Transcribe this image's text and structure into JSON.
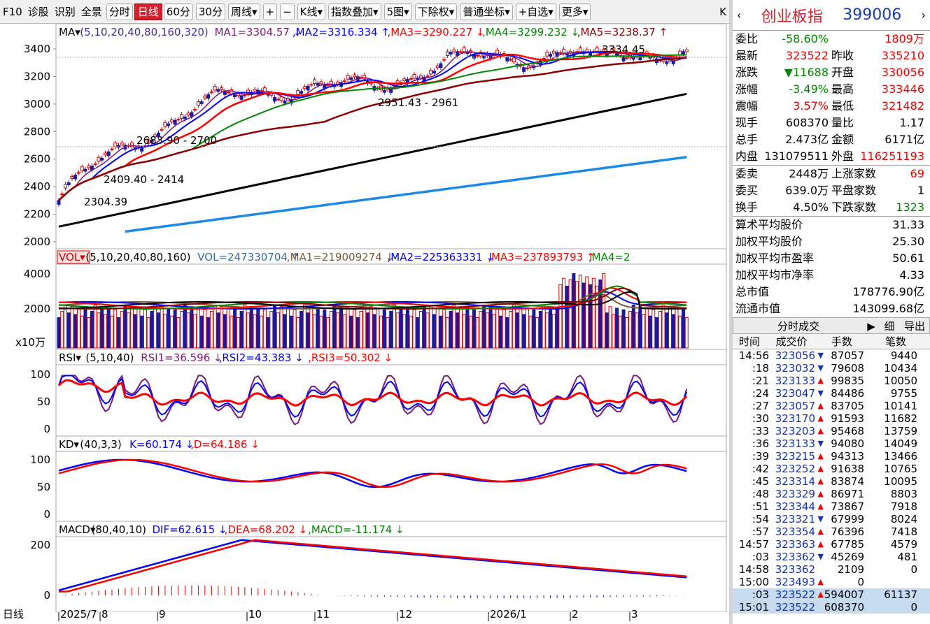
{
  "toolbar": {
    "items": [
      "F10",
      "诊股",
      "识别",
      "全景",
      "分时",
      "日线",
      "60分",
      "30分",
      "周线▾",
      "+",
      "−",
      "K线▾",
      "指数叠加▾",
      "5图▾",
      "下除权▾",
      "普通坐标▾",
      "+自选▾",
      "更多▾"
    ],
    "close": "K"
  },
  "ma_header": {
    "label": "MA▾",
    "params": "(5,10,20,40,80,160,320)",
    "ma1": "MA1=3304.57",
    "ma2": "MA2=3316.334",
    "ma3": "MA3=3290.227",
    "ma4": "MA4=3299.232",
    "ma5": "MA5=3238.37"
  },
  "price_axis": [
    "3400",
    "3200",
    "3000",
    "2800",
    "2600",
    "2400",
    "2200",
    "2000"
  ],
  "annotations": {
    "a1": "3334.45",
    "a2": "2951.43 - 2961",
    "a3": "2683.90 - 2700",
    "a4": "2409.40 - 2414",
    "a5": "2304.39"
  },
  "vol_header": {
    "label": "VOL▾",
    "params": "(5,10,20,40,80,160)",
    "vol": "VOL=247330704",
    "ma1": "MA1=219009274",
    "ma2": "MA2=225363331",
    "ma3": "MA3=237893793",
    "ma4": "MA4=2"
  },
  "vol_axis": [
    "4000",
    "2000"
  ],
  "vol_unit": "x10万",
  "rsi_header": {
    "label": "RSI▾",
    "params": "(5,10,40)",
    "r1": "RSI1=36.596",
    "r2": "RSI2=43.383",
    "r3": "RSI3=50.302"
  },
  "rsi_axis": [
    "100",
    "50",
    "0"
  ],
  "kd_header": {
    "label": "KD▾",
    "params": "(40,3,3)",
    "k": "K=60.174",
    "d": "D=64.186"
  },
  "kd_axis": [
    "100",
    "50",
    "0"
  ],
  "macd_header": {
    "label": "MACD▾",
    "params": "(80,40,10)",
    "dif": "DIF=62.615",
    "dea": "DEA=68.202",
    "macd": "MACD=-11.174"
  },
  "macd_axis": [
    "200",
    "0"
  ],
  "date_axis": {
    "corner": "日线",
    "labels": [
      "2025/7",
      "8",
      "9",
      "10",
      "11",
      "12",
      "2026/1",
      "2",
      "3"
    ]
  },
  "quote": {
    "name": "创业板指",
    "code": "399006",
    "rows": [
      [
        "委比",
        "-58.60%",
        "",
        "1809万"
      ],
      [
        "最新",
        "323522",
        "昨收",
        "335210"
      ],
      [
        "涨跌",
        "▼11688",
        "开盘",
        "330056"
      ],
      [
        "涨幅",
        "-3.49%",
        "最高",
        "333446"
      ],
      [
        "震幅",
        "3.57%",
        "最低",
        "321482"
      ],
      [
        "现手",
        "608370",
        "量比",
        "1.17"
      ],
      [
        "总手",
        "2.473亿",
        "金额",
        "6171亿"
      ],
      [
        "内盘",
        "131079511",
        "外盘",
        "116251193"
      ]
    ],
    "rows2": [
      [
        "委卖",
        "2448万",
        "上涨家数",
        "69"
      ],
      [
        "委买",
        "639.0万",
        "平盘家数",
        "1"
      ],
      [
        "换手",
        "4.50%",
        "下跌家数",
        "1323"
      ]
    ],
    "stats": [
      [
        "算术平均股价",
        "31.33"
      ],
      [
        "加权平均股价",
        "25.30"
      ],
      [
        "加权平均市盈率",
        "50.61"
      ],
      [
        "加权平均市净率",
        "4.33"
      ],
      [
        "总市值",
        "178776.90亿"
      ],
      [
        "流通市值",
        "143099.68亿"
      ]
    ]
  },
  "ticks": {
    "tab": "分时成交",
    "tab2": "细",
    "tab3": "导出",
    "cols": [
      "时间",
      "成交价",
      "手数",
      "笔数"
    ],
    "rows": [
      [
        "14:56",
        "323056",
        "▼",
        "87057",
        "9440"
      ],
      [
        ":18",
        "323032",
        "▼",
        "79608",
        "10434"
      ],
      [
        ":21",
        "323133",
        "▲",
        "99835",
        "10050"
      ],
      [
        ":24",
        "323047",
        "▼",
        "84486",
        "9755"
      ],
      [
        ":27",
        "323057",
        "▲",
        "83705",
        "10141"
      ],
      [
        ":30",
        "323170",
        "▲",
        "91593",
        "11682"
      ],
      [
        ":33",
        "323203",
        "▲",
        "95468",
        "13759"
      ],
      [
        ":36",
        "323133",
        "▼",
        "94080",
        "14049"
      ],
      [
        ":39",
        "323215",
        "▲",
        "94313",
        "13466"
      ],
      [
        ":42",
        "323252",
        "▲",
        "91638",
        "10765"
      ],
      [
        ":45",
        "323314",
        "▲",
        "83874",
        "10095"
      ],
      [
        ":48",
        "323329",
        "▲",
        "86971",
        "8803"
      ],
      [
        ":51",
        "323344",
        "▲",
        "73867",
        "7918"
      ],
      [
        ":54",
        "323321",
        "▼",
        "67999",
        "8024"
      ],
      [
        ":57",
        "323354",
        "▲",
        "76396",
        "7418"
      ],
      [
        "14:57",
        "323363",
        "▲",
        "67785",
        "4579"
      ],
      [
        ":03",
        "323362",
        "▼",
        "45269",
        "481"
      ],
      [
        "14:58",
        "323362",
        "",
        "2109",
        "0"
      ],
      [
        "15:00",
        "323493",
        "▲",
        "0",
        ""
      ],
      [
        ":03",
        "323522",
        "▲",
        "594007",
        "61137"
      ],
      [
        "15:01",
        "323522",
        "",
        "608370",
        "0"
      ]
    ]
  },
  "colors": {
    "up": "#e00000",
    "down": "#1a1aa0",
    "ma1": "#7a1a7a",
    "ma2": "#0000ff",
    "ma3": "#ff0000",
    "ma4": "#008800",
    "ma5": "#8b0000",
    "ma6": "#000000",
    "ma7": "#1e88e5"
  }
}
